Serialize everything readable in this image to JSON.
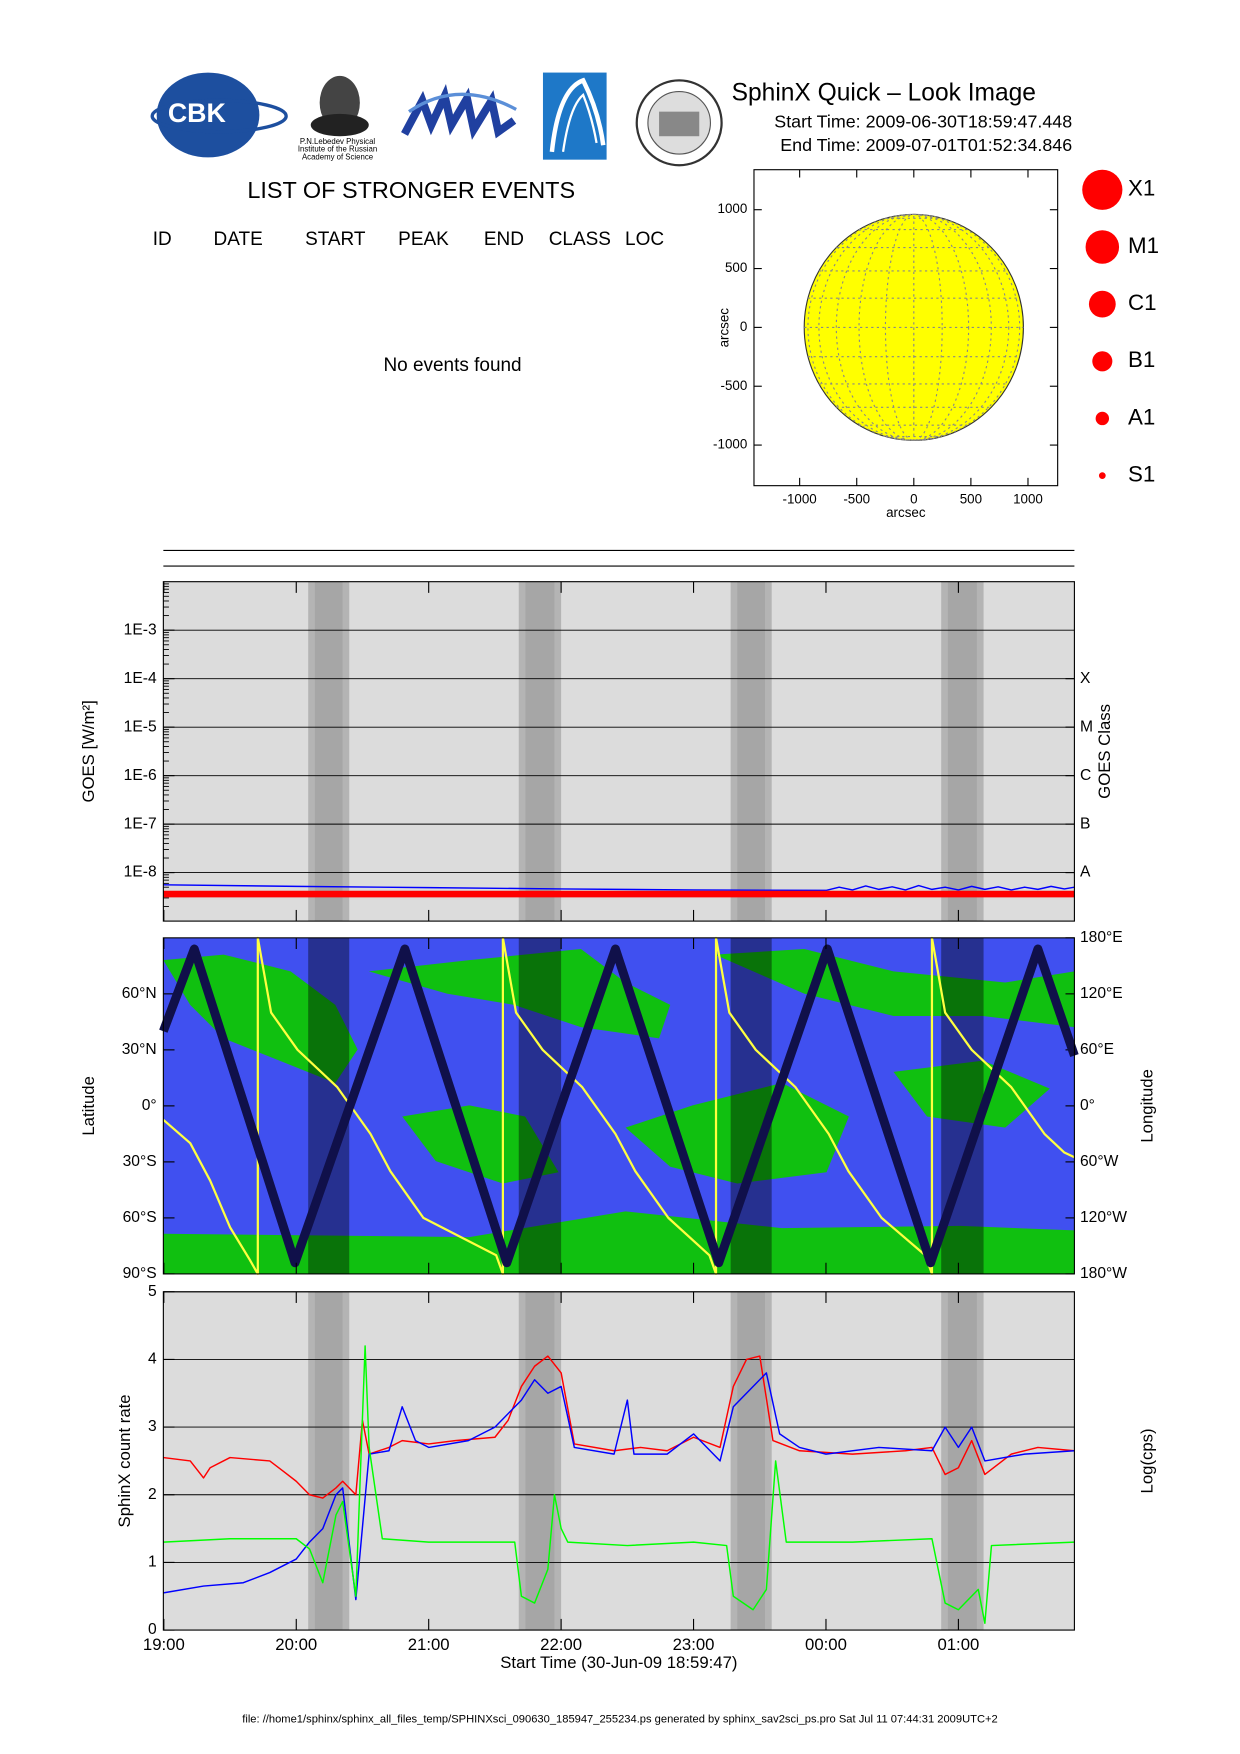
{
  "header": {
    "title": "SphinX Quick – Look Image",
    "start_time": "Start Time: 2009-06-30T18:59:47.448",
    "end_time": "End Time: 2009-07-01T01:52:34.846",
    "logo_cbk": "CBK",
    "logo_lebedev": [
      "P.N.Lebedev Physical",
      "Institute of the Russian",
      "Academy of Science"
    ]
  },
  "events": {
    "title": "LIST OF STRONGER EVENTS",
    "columns": [
      "ID",
      "DATE",
      "START",
      "PEAK",
      "END",
      "CLASS",
      "LOC"
    ],
    "message": "No events found"
  },
  "footer": "file: //home1/sphinx/sphinx_all_files_temp/SPHINXsci_090630_185947_255234.ps generated by sphinx_sav2sci_ps.pro Sat Jul 11 07:44:31 2009UTC+2",
  "chart_data": [
    {
      "type": "disk",
      "xlabel": "arcsec",
      "ylabel": "arcsec",
      "xlim": [
        -1400,
        1260
      ],
      "ylim": [
        -1345,
        1340
      ],
      "xticks": [
        -1000,
        -500,
        0,
        500,
        1000
      ],
      "yticks": [
        -1000,
        -500,
        0,
        500,
        1000
      ],
      "radius": 960,
      "color": "#ffff00",
      "legend": [
        "X1",
        "M1",
        "C1",
        "B1",
        "A1",
        "S1"
      ],
      "legend_color": "#ff0000"
    },
    {
      "type": "line",
      "ylabel": "GOES [W/m²]",
      "y2label": "GOES Class",
      "log_scale": true,
      "ylim": [
        1e-09,
        0.01
      ],
      "yticks": [
        {
          "value": 1e-08,
          "label": "1E-8"
        },
        {
          "value": 1e-07,
          "label": "1E-7"
        },
        {
          "value": 1e-06,
          "label": "1E-6"
        },
        {
          "value": 1e-05,
          "label": "1E-5"
        },
        {
          "value": 0.0001,
          "label": "1E-4"
        },
        {
          "value": 0.001,
          "label": "1E-3"
        }
      ],
      "y2lim": [
        1e-09,
        0.01
      ],
      "y2ticks": [
        {
          "value": 1e-08,
          "label": "A"
        },
        {
          "value": 1e-07,
          "label": "B"
        },
        {
          "value": 1e-06,
          "label": "C"
        },
        {
          "value": 1e-05,
          "label": "M"
        },
        {
          "value": 0.0001,
          "label": "X"
        }
      ],
      "grid": true,
      "series": [
        {
          "color": "#0000ff",
          "x": [
            18.9964,
            20,
            21,
            22,
            23,
            24,
            24.1,
            24.2,
            24.3,
            24.4,
            24.5,
            24.6,
            24.7,
            24.8,
            24.9,
            25.0,
            25.1,
            25.2,
            25.3,
            25.4,
            25.5,
            25.6,
            25.7,
            25.8,
            25.876
          ],
          "values": [
            5.6e-09,
            5.2e-09,
            4.9e-09,
            4.6e-09,
            4.4e-09,
            4.3e-09,
            5e-09,
            4.4e-09,
            5.3e-09,
            4.5e-09,
            5.1e-09,
            4.4e-09,
            5.4e-09,
            4.5e-09,
            5e-09,
            4.4e-09,
            5.2e-09,
            4.5e-09,
            5.1e-09,
            4.4e-09,
            5e-09,
            4.5e-09,
            5.2e-09,
            4.6e-09,
            5e-09
          ]
        },
        {
          "color": "#ff0000",
          "x": [
            18.9964,
            25.876
          ],
          "values": [
            3.6e-09,
            3.6e-09
          ]
        }
      ]
    },
    {
      "type": "line",
      "ylabel": "Latitude",
      "y2label": "Longitude",
      "ylim": [
        -90,
        90
      ],
      "yticks": [
        {
          "value": -90,
          "label": "90°S"
        },
        {
          "value": -60,
          "label": "60°S"
        },
        {
          "value": -30,
          "label": "30°S"
        },
        {
          "value": 0,
          "label": "0°"
        },
        {
          "value": 30,
          "label": "30°N"
        },
        {
          "value": 60,
          "label": "60°N"
        }
      ],
      "y2lim": [
        -180,
        180
      ],
      "y2ticks": [
        {
          "value": -180,
          "label": "180°W"
        },
        {
          "value": -120,
          "label": "120°W"
        },
        {
          "value": -60,
          "label": "60°W"
        },
        {
          "value": 0,
          "label": "0°"
        },
        {
          "value": 60,
          "label": "60°E"
        },
        {
          "value": 120,
          "label": "120°E"
        },
        {
          "value": 180,
          "label": "180°E"
        }
      ],
      "series": [
        {
          "color": "#ffff40",
          "axis": "y2",
          "x": [
            18.9964,
            19.2,
            19.35,
            19.5,
            19.65,
            19.71,
            19.71,
            19.81,
            20.01,
            20.31,
            20.56,
            20.71,
            20.96,
            21.51,
            21.56,
            21.56,
            21.66,
            21.86,
            22.16,
            22.41,
            22.56,
            22.81,
            23.12,
            23.17,
            23.17,
            23.27,
            23.47,
            23.77,
            24.02,
            24.17,
            24.42,
            24.75,
            24.8,
            24.8,
            24.9,
            25.1,
            25.4,
            25.65,
            25.8,
            25.876
          ],
          "values": [
            -15,
            -40,
            -80,
            -130,
            -165,
            -180,
            180,
            100,
            60,
            20,
            -30,
            -70,
            -120,
            -160,
            -180,
            180,
            100,
            60,
            20,
            -30,
            -70,
            -120,
            -160,
            -180,
            180,
            100,
            60,
            20,
            -30,
            -70,
            -120,
            -160,
            -180,
            180,
            100,
            60,
            20,
            -30,
            -50,
            -55
          ]
        },
        {
          "color": "#10104a",
          "x": [
            18.9964,
            19.23,
            19.99,
            20.82,
            21.59,
            22.41,
            23.19,
            24.01,
            24.79,
            25.6,
            25.876
          ],
          "values": [
            40,
            84,
            -84,
            84,
            -84,
            84,
            -84,
            84,
            -84,
            84,
            27
          ]
        }
      ]
    },
    {
      "type": "line",
      "ylabel": "SphinX count rate",
      "y2label": "Log(cps)",
      "xlabel": "Start Time (30-Jun-09 18:59:47)",
      "xlim": [
        18.9964,
        25.876
      ],
      "xticks": [
        {
          "value": 19,
          "label": "19:00"
        },
        {
          "value": 20,
          "label": "20:00"
        },
        {
          "value": 21,
          "label": "21:00"
        },
        {
          "value": 22,
          "label": "22:00"
        },
        {
          "value": 23,
          "label": "23:00"
        },
        {
          "value": 24,
          "label": "00:00"
        },
        {
          "value": 25,
          "label": "01:00"
        }
      ],
      "shaded": [
        [
          20.09,
          20.4
        ],
        [
          21.68,
          22.0
        ],
        [
          23.28,
          23.59
        ],
        [
          24.87,
          25.19
        ]
      ],
      "ylim": [
        0,
        5
      ],
      "yticks": [
        0,
        1,
        2,
        3,
        4,
        5
      ],
      "grid": true,
      "series": [
        {
          "color": "#ff0000",
          "x": [
            18.9964,
            19.2,
            19.3,
            19.35,
            19.5,
            19.8,
            19.9,
            20.0,
            20.1,
            20.2,
            20.3,
            20.35,
            20.45,
            20.5,
            20.55,
            20.7,
            20.8,
            21.0,
            21.2,
            21.5,
            21.6,
            21.7,
            21.8,
            21.9,
            22.0,
            22.1,
            22.4,
            22.6,
            22.8,
            23.0,
            23.2,
            23.3,
            23.4,
            23.5,
            23.6,
            23.8,
            24.2,
            24.6,
            24.8,
            24.9,
            25.0,
            25.1,
            25.2,
            25.4,
            25.6,
            25.876
          ],
          "values": [
            2.55,
            2.5,
            2.25,
            2.4,
            2.55,
            2.5,
            2.35,
            2.2,
            2.0,
            1.95,
            2.1,
            2.2,
            2.0,
            3.1,
            2.6,
            2.7,
            2.8,
            2.75,
            2.8,
            2.85,
            3.1,
            3.6,
            3.9,
            4.05,
            3.8,
            2.75,
            2.65,
            2.7,
            2.65,
            2.85,
            2.7,
            3.6,
            4.0,
            4.05,
            2.8,
            2.65,
            2.6,
            2.65,
            2.7,
            2.3,
            2.4,
            2.8,
            2.3,
            2.6,
            2.7,
            2.65
          ]
        },
        {
          "color": "#0000ff",
          "x": [
            18.9964,
            19.3,
            19.6,
            19.8,
            20.0,
            20.1,
            20.2,
            20.3,
            20.35,
            20.45,
            20.55,
            20.7,
            20.8,
            20.9,
            21.0,
            21.3,
            21.5,
            21.7,
            21.8,
            21.9,
            22.0,
            22.1,
            22.4,
            22.5,
            22.55,
            22.8,
            23.0,
            23.2,
            23.3,
            23.45,
            23.55,
            23.65,
            23.8,
            24.0,
            24.4,
            24.8,
            24.9,
            25.0,
            25.1,
            25.2,
            25.5,
            25.876
          ],
          "values": [
            0.55,
            0.65,
            0.7,
            0.85,
            1.05,
            1.3,
            1.5,
            2.0,
            2.1,
            0.45,
            2.6,
            2.65,
            3.3,
            2.8,
            2.7,
            2.8,
            3.0,
            3.4,
            3.7,
            3.5,
            3.6,
            2.7,
            2.6,
            3.4,
            2.6,
            2.6,
            2.9,
            2.5,
            3.3,
            3.6,
            3.8,
            2.9,
            2.7,
            2.6,
            2.7,
            2.65,
            3.0,
            2.7,
            3.0,
            2.5,
            2.6,
            2.65
          ]
        },
        {
          "color": "#00ff00",
          "x": [
            18.9964,
            19.5,
            20.0,
            20.1,
            20.2,
            20.3,
            20.35,
            20.45,
            20.52,
            20.55,
            20.65,
            21.0,
            21.65,
            21.7,
            21.8,
            21.9,
            21.95,
            22.0,
            22.05,
            22.5,
            23.0,
            23.25,
            23.3,
            23.45,
            23.55,
            23.62,
            23.7,
            24.2,
            24.8,
            24.9,
            25.0,
            25.15,
            25.2,
            25.25,
            25.876
          ],
          "values": [
            1.3,
            1.35,
            1.35,
            1.2,
            0.7,
            1.7,
            1.9,
            0.5,
            4.2,
            2.7,
            1.35,
            1.3,
            1.3,
            0.5,
            0.4,
            0.9,
            2.0,
            1.5,
            1.3,
            1.25,
            1.3,
            1.25,
            0.5,
            0.3,
            0.6,
            2.5,
            1.3,
            1.3,
            1.35,
            0.4,
            0.3,
            0.6,
            0.1,
            1.25,
            1.3
          ]
        }
      ]
    }
  ]
}
